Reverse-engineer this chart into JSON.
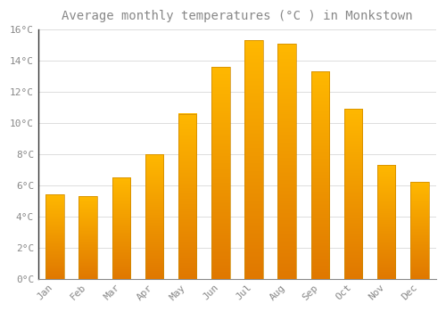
{
  "title": "Average monthly temperatures (°C ) in Monkstown",
  "months": [
    "Jan",
    "Feb",
    "Mar",
    "Apr",
    "May",
    "Jun",
    "Jul",
    "Aug",
    "Sep",
    "Oct",
    "Nov",
    "Dec"
  ],
  "values": [
    5.4,
    5.3,
    6.5,
    8.0,
    10.6,
    13.6,
    15.3,
    15.1,
    13.3,
    10.9,
    7.3,
    6.2
  ],
  "bar_color_top": "#FFB800",
  "bar_color_bottom": "#E07800",
  "background_color": "#FFFFFF",
  "grid_color": "#DDDDDD",
  "text_color": "#888888",
  "spine_color": "#333333",
  "ylim": [
    0,
    16
  ],
  "yticks": [
    0,
    2,
    4,
    6,
    8,
    10,
    12,
    14,
    16
  ],
  "title_fontsize": 10,
  "tick_fontsize": 8,
  "bar_width": 0.55
}
